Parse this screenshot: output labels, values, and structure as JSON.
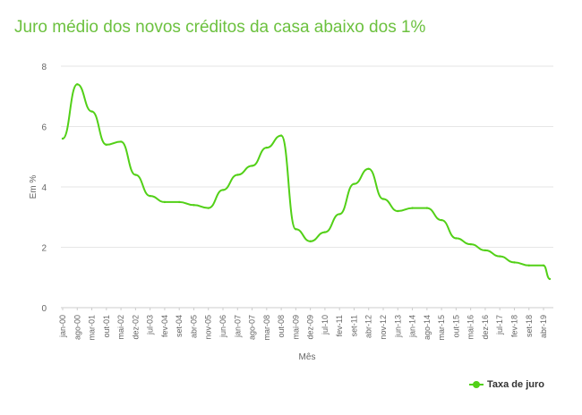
{
  "colors": {
    "title": "#6cc13f",
    "series": "#52d017",
    "grid": "#e6e6e6",
    "text": "#666666"
  },
  "chart_data": {
    "type": "line",
    "title": "Juro médio dos novos créditos da casa abaixo dos 1%",
    "xlabel": "Mês",
    "ylabel": "Em %",
    "ylim": [
      0,
      8
    ],
    "yticks": [
      "0",
      "2",
      "4",
      "6",
      "8"
    ],
    "grid": true,
    "legend_position": "bottom-right",
    "x_tick_labels": [
      "jan-00",
      "ago-00",
      "mar-01",
      "out-01",
      "mai-02",
      "dez-02",
      "jul-03",
      "fev-04",
      "set-04",
      "abr-05",
      "nov-05",
      "jun-06",
      "jan-07",
      "ago-07",
      "mar-08",
      "out-08",
      "mai-09",
      "dez-09",
      "jul-10",
      "fev-11",
      "set-11",
      "abr-12",
      "nov-12",
      "jun-13",
      "jan-14",
      "ago-14",
      "mar-15",
      "out-15",
      "mai-16",
      "dez-16",
      "jul-17",
      "fev-18",
      "set-18",
      "abr-19"
    ],
    "series": [
      {
        "name": "Taxa de juro",
        "x": [
          "jan-00",
          "ago-00",
          "mar-01",
          "out-01",
          "mai-02",
          "dez-02",
          "jul-03",
          "fev-04",
          "set-04",
          "abr-05",
          "nov-05",
          "jun-06",
          "jan-07",
          "ago-07",
          "mar-08",
          "out-08",
          "mai-09",
          "dez-09",
          "jul-10",
          "fev-11",
          "set-11",
          "abr-12",
          "nov-12",
          "jun-13",
          "jan-14",
          "ago-14",
          "mar-15",
          "out-15",
          "mai-16",
          "dez-16",
          "jul-17",
          "fev-18",
          "set-18",
          "abr-19",
          "jul-19"
        ],
        "values": [
          5.6,
          7.4,
          6.5,
          5.4,
          5.5,
          4.4,
          3.7,
          3.5,
          3.5,
          3.4,
          3.3,
          3.9,
          4.4,
          4.7,
          5.3,
          5.7,
          2.6,
          2.2,
          2.5,
          3.1,
          4.1,
          4.6,
          3.6,
          3.2,
          3.3,
          3.3,
          2.9,
          2.3,
          2.1,
          1.9,
          1.7,
          1.5,
          1.4,
          1.4,
          0.95
        ]
      }
    ]
  }
}
